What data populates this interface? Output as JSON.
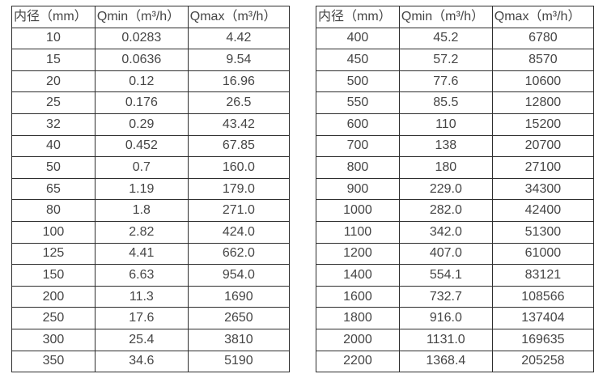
{
  "page": {
    "background_color": "#ffffff",
    "border_color": "#2e2e2e",
    "text_color": "#454545"
  },
  "tables": [
    {
      "name": "flow-table-small-diameter",
      "headers": [
        "内径（mm）",
        "Qmin（m³/h）",
        "Qmax（m³/h）"
      ],
      "rows": [
        [
          "10",
          "0.0283",
          "4.42"
        ],
        [
          "15",
          "0.0636",
          "9.54"
        ],
        [
          "20",
          "0.12",
          "16.96"
        ],
        [
          "25",
          "0.176",
          "26.5"
        ],
        [
          "32",
          "0.29",
          "43.42"
        ],
        [
          "40",
          "0.452",
          "67.85"
        ],
        [
          "50",
          "0.7",
          "160.0"
        ],
        [
          "65",
          "1.19",
          "179.0"
        ],
        [
          "80",
          "1.8",
          "271.0"
        ],
        [
          "100",
          "2.82",
          "424.0"
        ],
        [
          "125",
          "4.41",
          "662.0"
        ],
        [
          "150",
          "6.63",
          "954.0"
        ],
        [
          "200",
          "11.3",
          "1690"
        ],
        [
          "250",
          "17.6",
          "2650"
        ],
        [
          "300",
          "25.4",
          "3810"
        ],
        [
          "350",
          "34.6",
          "5190"
        ]
      ]
    },
    {
      "name": "flow-table-large-diameter",
      "headers": [
        "内径（mm）",
        "Qmin（m³/h）",
        "Qmax（m³/h）"
      ],
      "rows": [
        [
          "400",
          "45.2",
          "6780"
        ],
        [
          "450",
          "57.2",
          "8570"
        ],
        [
          "500",
          "77.6",
          "10600"
        ],
        [
          "550",
          "85.5",
          "12800"
        ],
        [
          "600",
          "110",
          "15200"
        ],
        [
          "700",
          "138",
          "20700"
        ],
        [
          "800",
          "180",
          "27100"
        ],
        [
          "900",
          "229.0",
          "34300"
        ],
        [
          "1000",
          "282.0",
          "42400"
        ],
        [
          "1100",
          "342.0",
          "51300"
        ],
        [
          "1200",
          "407.0",
          "61000"
        ],
        [
          "1400",
          "554.1",
          "83121"
        ],
        [
          "1600",
          "732.7",
          "108566"
        ],
        [
          "1800",
          "916.0",
          "137404"
        ],
        [
          "2000",
          "1131.0",
          "169635"
        ],
        [
          "2200",
          "1368.4",
          "205258"
        ]
      ]
    }
  ]
}
